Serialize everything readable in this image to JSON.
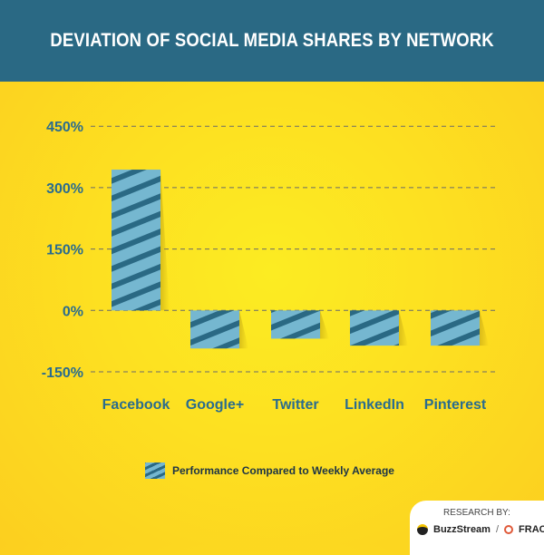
{
  "header": {
    "title": "DEVIATION OF SOCIAL MEDIA SHARES BY NETWORK"
  },
  "chart_data": {
    "type": "bar",
    "title": "DEVIATION OF SOCIAL MEDIA SHARES BY NETWORK",
    "categories": [
      "Facebook",
      "Google+",
      "Twitter",
      "LinkedIn",
      "Pinterest"
    ],
    "series": [
      {
        "name": "Performance Compared to Weekly Average",
        "values": [
          344,
          -93,
          -69,
          -86,
          -86
        ]
      }
    ],
    "ylim": [
      -150,
      450
    ],
    "yticks": [
      450,
      300,
      150,
      0,
      -150
    ],
    "ytick_labels": [
      "450%",
      "300%",
      "150%",
      "0%",
      "-150%"
    ],
    "xlabel": "",
    "ylabel": "",
    "grid": true,
    "legend": "bottom-center"
  },
  "legend": {
    "label": "Performance Compared to Weekly Average"
  },
  "credit": {
    "label": "RESEARCH BY:",
    "brand1": "BuzzStream",
    "separator": "/",
    "brand2": "FRACTL"
  },
  "colors": {
    "header": "#2a6984",
    "bar": "#75b7d0",
    "stripe": "#2a6984",
    "text": "#2a6c8e"
  }
}
